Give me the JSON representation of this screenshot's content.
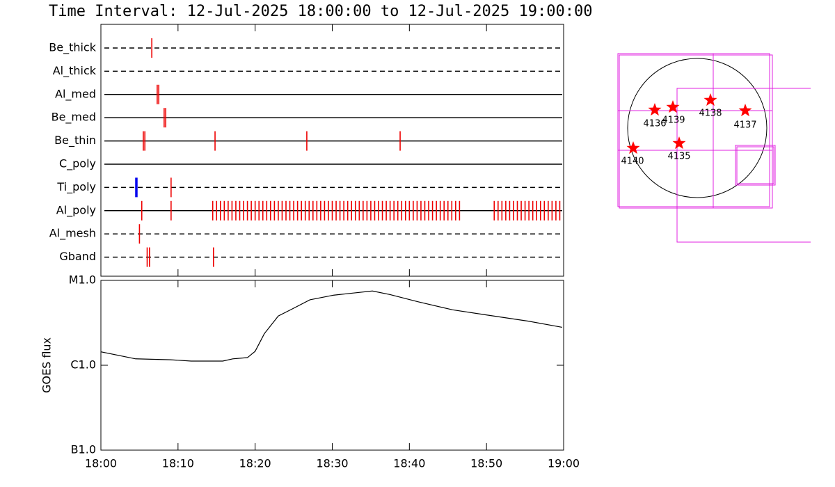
{
  "title": "Time Interval: 12-Jul-2025 18:00:00 to 12-Jul-2025 19:00:00",
  "chart_data": [
    {
      "type": "timeline",
      "xlim": [
        0,
        60
      ],
      "rows": [
        {
          "name": "Be_thick",
          "style": "dashed",
          "marks": [
            {
              "color": "#ee0000",
              "times": [
                6.6
              ]
            }
          ]
        },
        {
          "name": "Al_thick",
          "style": "dashed",
          "marks": []
        },
        {
          "name": "Al_med",
          "style": "solid",
          "marks": [
            {
              "color": "#ee0000",
              "times": [
                7.3,
                7.5
              ]
            }
          ]
        },
        {
          "name": "Be_med",
          "style": "solid",
          "marks": [
            {
              "color": "#ee0000",
              "times": [
                8.2,
                8.4
              ]
            }
          ]
        },
        {
          "name": "Be_thin",
          "style": "solid",
          "marks": [
            {
              "color": "#ee0000",
              "times": [
                5.5,
                5.7,
                14.8,
                26.7,
                38.8
              ]
            }
          ]
        },
        {
          "name": "C_poly",
          "style": "solid",
          "marks": []
        },
        {
          "name": "Ti_poly",
          "style": "dashed",
          "marks": [
            {
              "color": "#0000ee",
              "times": [
                4.6
              ]
            },
            {
              "color": "#ee0000",
              "times": [
                9.1
              ]
            }
          ]
        },
        {
          "name": "Al_poly",
          "style": "solid",
          "marks": [
            {
              "color": "#ee0000",
              "times": [
                5.3,
                9.1,
                14.5,
                15,
                15.5,
                16,
                16.5,
                17,
                17.5,
                18,
                18.5,
                19,
                19.5,
                20,
                20.5,
                21,
                21.5,
                22,
                22.5,
                23,
                23.5,
                24,
                24.5,
                25,
                25.5,
                26,
                26.5,
                27,
                27.5,
                28,
                28.5,
                29,
                29.5,
                30,
                30.5,
                31,
                31.5,
                32,
                32.5,
                33,
                33.5,
                34,
                34.5,
                35,
                35.5,
                36,
                36.5,
                37,
                37.5,
                38,
                38.5,
                39,
                39.5,
                40,
                40.5,
                41,
                41.5,
                42,
                42.5,
                43,
                43.5,
                44,
                44.5,
                45,
                45.5,
                46,
                46.5,
                51,
                51.5,
                52,
                52.5,
                53,
                53.5,
                54,
                54.5,
                55,
                55.5,
                56,
                56.5,
                57,
                57.5,
                58,
                58.5,
                59,
                59.5
              ]
            }
          ]
        },
        {
          "name": "Al_mesh",
          "style": "dashed",
          "marks": [
            {
              "color": "#ee0000",
              "times": [
                5.0
              ]
            }
          ]
        },
        {
          "name": "Gband",
          "style": "dashed",
          "marks": [
            {
              "color": "#ee0000",
              "times": [
                6.0,
                6.3,
                14.6
              ]
            }
          ]
        }
      ]
    },
    {
      "type": "line",
      "ylabel": "GOES flux",
      "log": true,
      "color": "#000000",
      "xlim": [
        0,
        60
      ],
      "xticks": [
        {
          "value": 0,
          "label": "18:00"
        },
        {
          "value": 10,
          "label": "18:10"
        },
        {
          "value": 20,
          "label": "18:20"
        },
        {
          "value": 30,
          "label": "18:30"
        },
        {
          "value": 40,
          "label": "18:40"
        },
        {
          "value": 50,
          "label": "18:50"
        },
        {
          "value": 60,
          "label": "19:00"
        }
      ],
      "ylim": [
        1e-07,
        1e-05
      ],
      "yticks": [
        {
          "value": 1e-07,
          "label": "B1.0"
        },
        {
          "value": 1e-06,
          "label": "C1.0"
        },
        {
          "value": 1e-05,
          "label": "M1.0"
        }
      ],
      "x": [
        0,
        4.5,
        9,
        11.7,
        15.8,
        17.1,
        19,
        20,
        21.2,
        23,
        24.8,
        27.1,
        30.2,
        35.2,
        37.5,
        41.1,
        45.6,
        50.1,
        55.5,
        59.8
      ],
      "values": [
        1.44e-06,
        1.19e-06,
        1.16e-06,
        1.12e-06,
        1.12e-06,
        1.19e-06,
        1.23e-06,
        1.46e-06,
        2.36e-06,
        3.8e-06,
        4.6e-06,
        5.9e-06,
        6.7e-06,
        7.5e-06,
        6.8e-06,
        5.6e-06,
        4.5e-06,
        3.9e-06,
        3.3e-06,
        2.8e-06
      ]
    }
  ],
  "map": {
    "labels": [
      "4136",
      "4139",
      "4138",
      "4137",
      "4140",
      "4135"
    ]
  }
}
